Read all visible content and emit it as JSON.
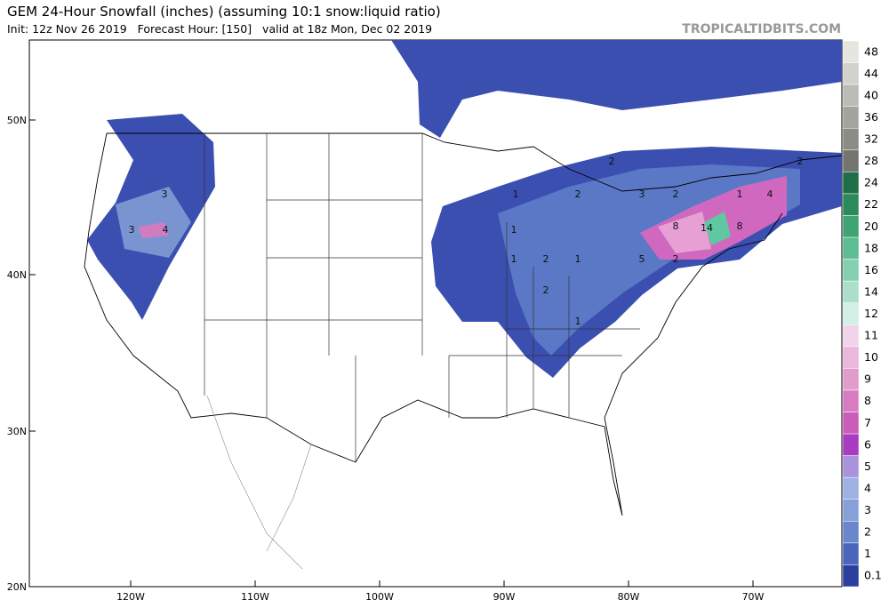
{
  "header": {
    "title": "GEM 24-Hour Snowfall (inches) (assuming 10:1 snow:liquid ratio)",
    "subtitle": "Init: 12z Nov 26 2019   Forecast Hour: [150]   valid at 18z Mon, Dec 02 2019",
    "source": "TROPICALTIDBITS.COM"
  },
  "map": {
    "latitude_labels": [
      "50N",
      "40N",
      "30N",
      "20N"
    ],
    "longitude_labels": [
      "120W",
      "110W",
      "100W",
      "90W",
      "80W",
      "70W"
    ],
    "contour_labels": [
      "3",
      "3",
      "4",
      "1",
      "1",
      "2",
      "1",
      "2",
      "1",
      "2",
      "1",
      "3",
      "2",
      "2",
      "5",
      "8",
      "14",
      "8",
      "4",
      "2",
      "2",
      "1"
    ]
  },
  "colorbar": {
    "labels": [
      "48",
      "44",
      "40",
      "36",
      "32",
      "28",
      "24",
      "22",
      "20",
      "18",
      "16",
      "14",
      "12",
      "11",
      "10",
      "9",
      "8",
      "7",
      "6",
      "5",
      "4",
      "3",
      "2",
      "1",
      "0.1"
    ],
    "colors": [
      "#e6e6e0",
      "#d2d2cc",
      "#bcbcb6",
      "#a4a49e",
      "#8c8c86",
      "#747470",
      "#1e6e48",
      "#2a8a5c",
      "#3ea474",
      "#5cbc92",
      "#84d0b0",
      "#acdfca",
      "#d4efe4",
      "#f2d4ea",
      "#eab8dc",
      "#e29ccc",
      "#d87cc0",
      "#cc5cba",
      "#aa3cc4",
      "#a893dc",
      "#9fb0e2",
      "#86a0da",
      "#6a86cc",
      "#4a66bc",
      "#2c3e9e"
    ]
  }
}
